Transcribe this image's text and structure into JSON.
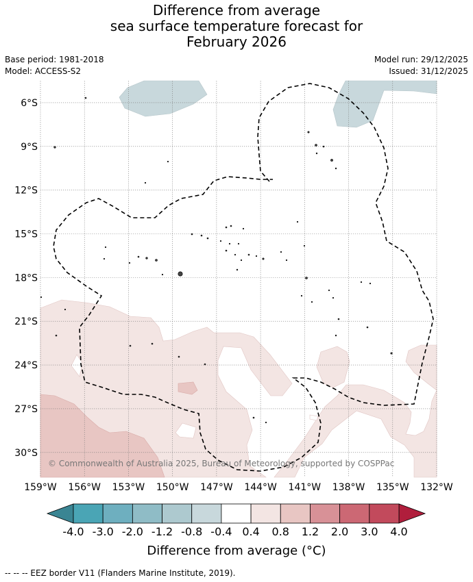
{
  "title": {
    "line1": "Difference from average",
    "line2": "sea surface temperature forecast for",
    "line3": "February 2026"
  },
  "meta": {
    "base_period": "Base period: 1981-2018",
    "model": "Model: ACCESS-S2",
    "model_run": "Model run: 29/12/2025",
    "issued": "Issued: 31/12/2025"
  },
  "map": {
    "lat_labels": [
      "6°S",
      "9°S",
      "12°S",
      "15°S",
      "18°S",
      "21°S",
      "24°S",
      "27°S",
      "30°S"
    ],
    "lon_labels": [
      "159°W",
      "156°W",
      "153°W",
      "150°W",
      "147°W",
      "144°W",
      "141°W",
      "138°W",
      "135°W",
      "132°W"
    ],
    "lat_range": [
      -31.7,
      -4.5
    ],
    "lon_range": [
      -159,
      -132
    ],
    "copyright": "© Commonwealth of Australia 2025, Bureau of Meteorology, supported by COSPPac"
  },
  "colorbar": {
    "labels": [
      "-4.0",
      "-3.0",
      "-2.0",
      "-1.2",
      "-0.8",
      "-0.4",
      "0.4",
      "0.8",
      "1.2",
      "2.0",
      "3.0",
      "4.0"
    ],
    "colors": [
      "#3a8593",
      "#4aa5b5",
      "#6eafbf",
      "#8fbcc6",
      "#adc9cf",
      "#c8d8dc",
      "#ffffff",
      "#f3e5e3",
      "#e8c6c3",
      "#d89197",
      "#cc6874",
      "#c24a5c",
      "#b01e3c"
    ],
    "title": "Difference from average (°C)"
  },
  "footer": "--  --  -- EEZ border V11 (Flanders Marine Institute, 2019)."
}
